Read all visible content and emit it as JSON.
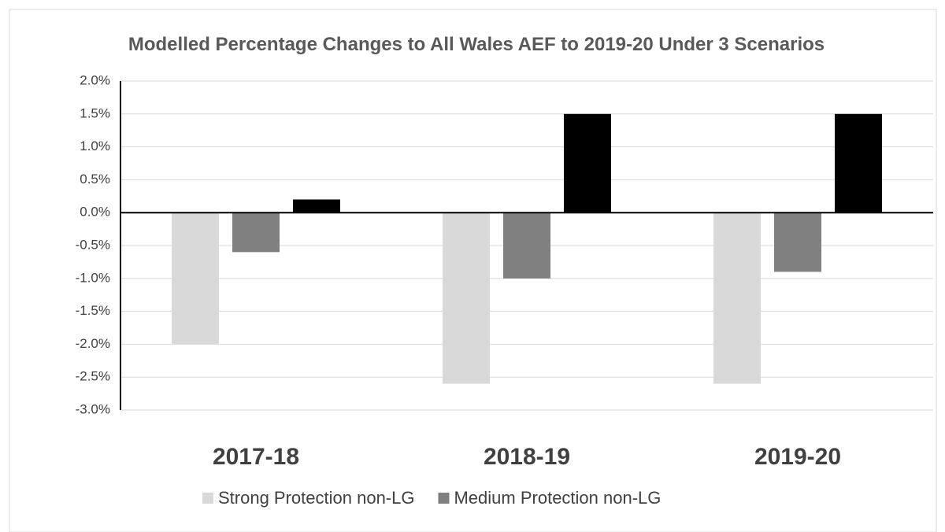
{
  "chart_data": {
    "type": "bar",
    "title": "Modelled Percentage Changes to All Wales AEF to 2019-20 Under 3 Scenarios",
    "categories": [
      "2017-18",
      "2018-19",
      "2019-20"
    ],
    "series": [
      {
        "name": "Strong Protection non-LG",
        "color": "#d9d9d9",
        "values": [
          -2.0,
          -2.6,
          -2.6
        ]
      },
      {
        "name": "Medium Protection non-LG",
        "color": "#808080",
        "values": [
          -0.6,
          -1.0,
          -0.9
        ]
      },
      {
        "color": "#000000",
        "values": [
          0.2,
          1.5,
          1.5
        ]
      }
    ],
    "ylim": [
      -3,
      2
    ],
    "yticks": [
      {
        "value": -3,
        "label": "-3.0%"
      },
      {
        "value": -2.5,
        "label": "-2.5%"
      },
      {
        "value": -2,
        "label": "-2.0%"
      },
      {
        "value": -1.5,
        "label": "-1.5%"
      },
      {
        "value": -1,
        "label": "-1.0%"
      },
      {
        "value": -0.5,
        "label": "-0.5%"
      },
      {
        "value": 0,
        "label": "0.0%"
      },
      {
        "value": 0.5,
        "label": "0.5%"
      },
      {
        "value": 1,
        "label": "1.0%"
      },
      {
        "value": 1.5,
        "label": "1.5%"
      },
      {
        "value": 2,
        "label": "2.0%"
      }
    ],
    "grid": true,
    "legend": "bottom"
  }
}
